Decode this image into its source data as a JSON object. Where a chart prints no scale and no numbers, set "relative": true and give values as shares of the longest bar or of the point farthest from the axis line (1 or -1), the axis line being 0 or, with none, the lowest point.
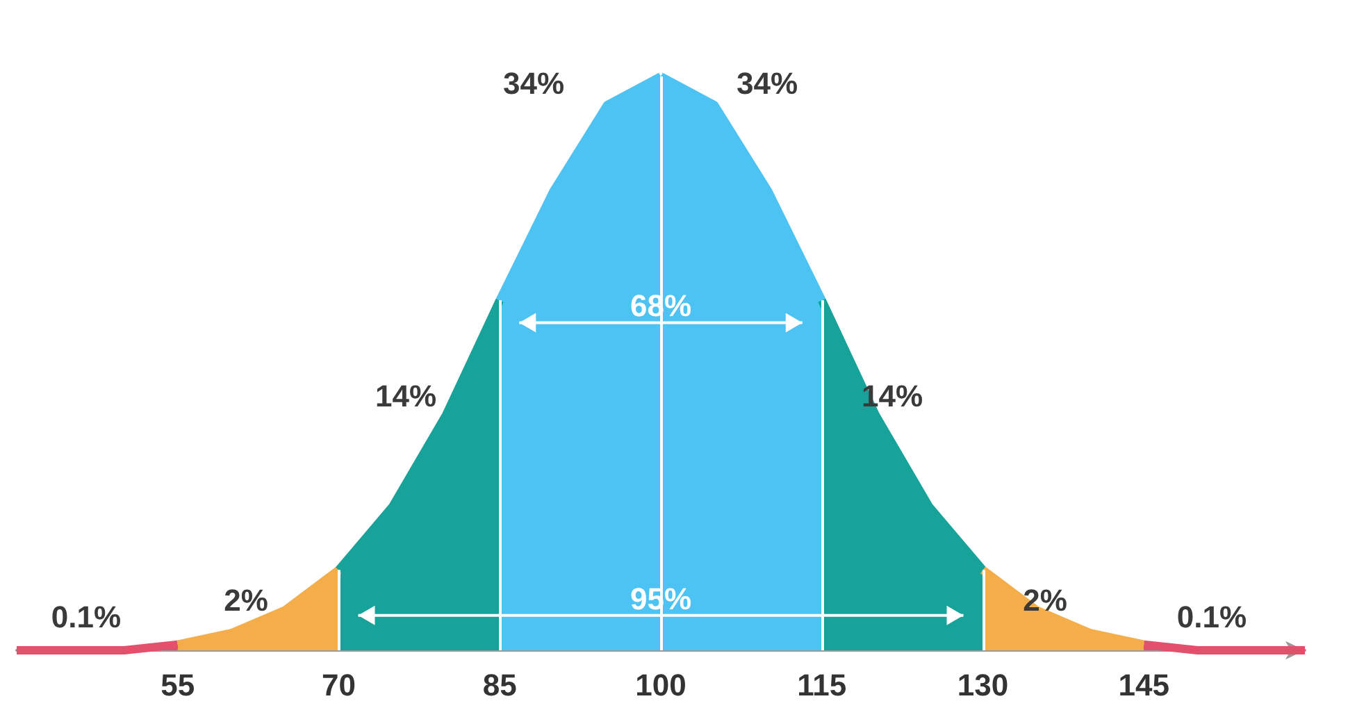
{
  "chart_data": {
    "type": "area",
    "relative": true,
    "xlim": [
      40,
      160
    ],
    "xticks": [
      55,
      70,
      85,
      100,
      115,
      130,
      145
    ],
    "grid": false,
    "series": [
      {
        "color": "#e2506b",
        "x": [
          40,
          45,
          50,
          55
        ],
        "values": [
          0,
          0,
          0,
          0.01
        ]
      },
      {
        "color": "#f5ad4a",
        "x": [
          55,
          60,
          65,
          70
        ],
        "values": [
          0.01,
          0.03,
          0.07,
          0.14
        ]
      },
      {
        "color": "#17a39a",
        "x": [
          70,
          75,
          80,
          85
        ],
        "values": [
          0.14,
          0.25,
          0.41,
          0.61
        ]
      },
      {
        "color": "#4dc3f3",
        "x": [
          85,
          90,
          95,
          100
        ],
        "values": [
          0.61,
          0.8,
          0.95,
          1
        ]
      },
      {
        "color": "#4dc3f3",
        "x": [
          100,
          105,
          110,
          115
        ],
        "values": [
          1,
          0.95,
          0.8,
          0.61
        ]
      },
      {
        "color": "#17a39a",
        "x": [
          115,
          120,
          125,
          130
        ],
        "values": [
          0.61,
          0.41,
          0.25,
          0.14
        ]
      },
      {
        "color": "#f5ad4a",
        "x": [
          130,
          135,
          140,
          145
        ],
        "values": [
          0.14,
          0.07,
          0.03,
          0.01
        ]
      },
      {
        "color": "#e2506b",
        "x": [
          145,
          150,
          155,
          160
        ],
        "values": [
          0.01,
          0,
          0,
          0
        ]
      }
    ],
    "ref_lines": [
      {
        "axis": "x",
        "value": 70,
        "color": "#ffffff"
      },
      {
        "axis": "x",
        "value": 85,
        "color": "#ffffff"
      },
      {
        "axis": "x",
        "value": 100,
        "color": "#ffffff"
      },
      {
        "axis": "x",
        "value": 115,
        "color": "#ffffff"
      },
      {
        "axis": "x",
        "value": 130,
        "color": "#ffffff"
      }
    ],
    "annotations": [
      "34%",
      "34%",
      "14%",
      "14%",
      "2%",
      "2%",
      "0.1%",
      "0.1%",
      {
        "text": "68%",
        "x": 100,
        "y": 0.6
      },
      {
        "text": "95%",
        "x": 100,
        "y": 0.09
      }
    ]
  }
}
